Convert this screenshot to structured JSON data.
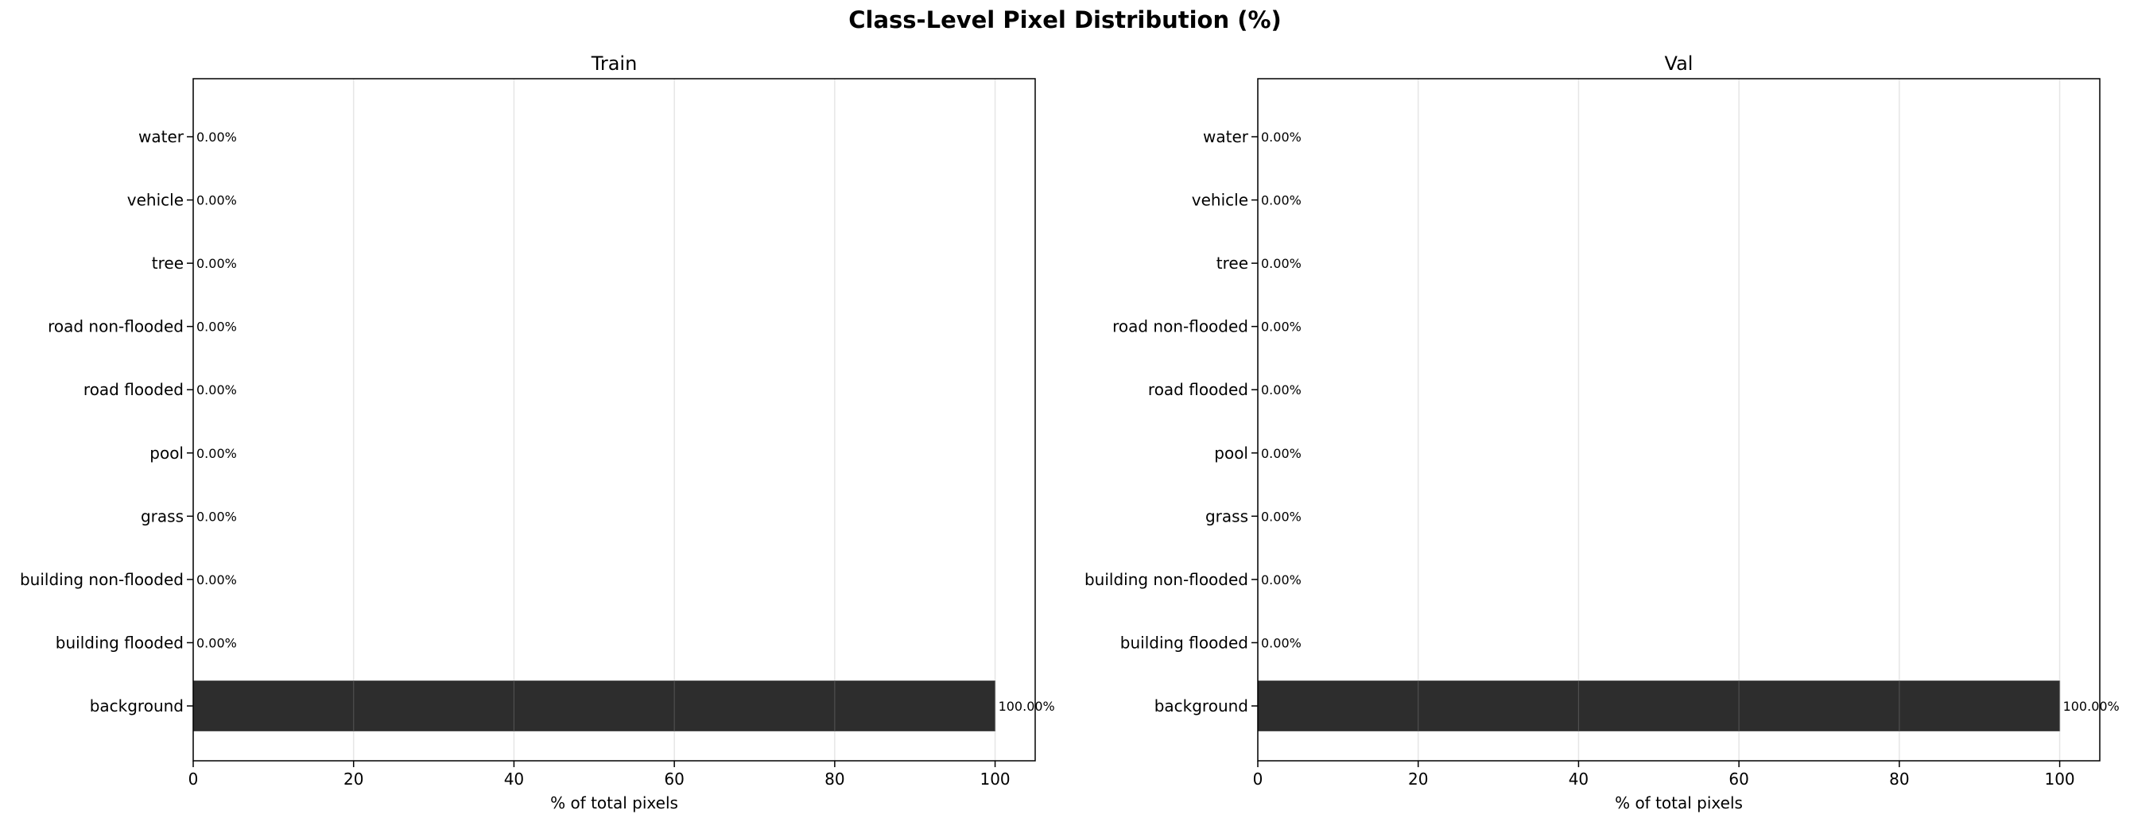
{
  "title": "Class-Level Pixel Distribution (%)",
  "colors": {
    "bar": "#2d2d2d",
    "grid": "#e6e6e6",
    "axis": "#000000"
  },
  "chart_data": [
    {
      "type": "bar",
      "orientation": "horizontal",
      "title": "Train",
      "xlabel": "% of total pixels",
      "ylabel": "",
      "xlim": [
        0,
        105
      ],
      "xticks": [
        "0",
        "20",
        "40",
        "60",
        "80",
        "100"
      ],
      "grid": "vertical",
      "categories": [
        "background",
        "building flooded",
        "building non-flooded",
        "grass",
        "pool",
        "road flooded",
        "road non-flooded",
        "tree",
        "vehicle",
        "water"
      ],
      "values": [
        100.0,
        0.0,
        0.0,
        0.0,
        0.0,
        0.0,
        0.0,
        0.0,
        0.0,
        0.0
      ],
      "data_labels": [
        "100.00%",
        "0.00%",
        "0.00%",
        "0.00%",
        "0.00%",
        "0.00%",
        "0.00%",
        "0.00%",
        "0.00%",
        "0.00%"
      ]
    },
    {
      "type": "bar",
      "orientation": "horizontal",
      "title": "Val",
      "xlabel": "% of total pixels",
      "ylabel": "",
      "xlim": [
        0,
        105
      ],
      "xticks": [
        "0",
        "20",
        "40",
        "60",
        "80",
        "100"
      ],
      "grid": "vertical",
      "categories": [
        "background",
        "building flooded",
        "building non-flooded",
        "grass",
        "pool",
        "road flooded",
        "road non-flooded",
        "tree",
        "vehicle",
        "water"
      ],
      "values": [
        100.0,
        0.0,
        0.0,
        0.0,
        0.0,
        0.0,
        0.0,
        0.0,
        0.0,
        0.0
      ],
      "data_labels": [
        "100.00%",
        "0.00%",
        "0.00%",
        "0.00%",
        "0.00%",
        "0.00%",
        "0.00%",
        "0.00%",
        "0.00%",
        "0.00%"
      ]
    }
  ]
}
